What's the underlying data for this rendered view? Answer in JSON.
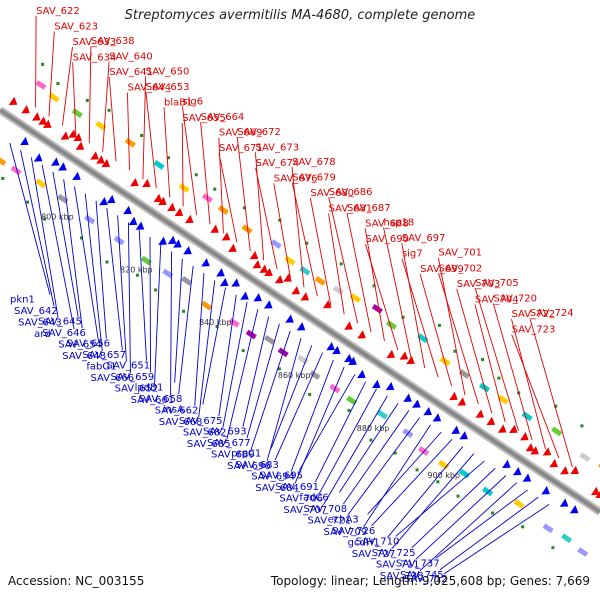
{
  "title": "Streptomyces avermitilis MA-4680, complete genome",
  "footer": {
    "accession": "Accession: NC_003155",
    "stats": "Topology: linear; Length: 9,025,608 bp; Genes: 7,669"
  },
  "ticks": [
    "800 kbp",
    "820 kbp",
    "840 kbp",
    "860 kbp",
    "880 kbp",
    "900 kbp"
  ],
  "labels_top": [
    "SAV_622",
    "SAV_623",
    "SAV_633",
    "SAV_634",
    "SAV_638",
    "SAV_640",
    "SAV_641",
    "SAV_644",
    "SAV_650",
    "SAV_653",
    "blaB1",
    "SAV_655",
    "sig6",
    "SAV_664",
    "SAV_669",
    "SAV_671",
    "SAV_672",
    "SAV_673",
    "SAV_674",
    "SAV_676",
    "SAV_678",
    "SAV_679",
    "SAV_680",
    "SAV_681",
    "SAV_686",
    "SAV_687",
    "SAV_688",
    "SAV_690",
    "hsp18",
    "SAV_697",
    "sig7",
    "SAV_699",
    "SAV_701",
    "SAV_702",
    "SAV_703",
    "SAV_704",
    "SAV_705",
    "SAV_720",
    "SAV_722",
    "SAV_723",
    "SAV_724"
  ],
  "labels_bottom": [
    "pkn1",
    "SAV_642",
    "SAV_643",
    "ard",
    "SAV_645",
    "SAV_646",
    "SAV_654",
    "SAV_648",
    "SAV_656",
    "SAV_657",
    "fabG1",
    "SAV_666",
    "SAV_651",
    "SAV_659",
    "SAV_652",
    "SAV_661",
    "lpdB1",
    "SAV_658",
    "SAV_662",
    "SAV_668",
    "insA",
    "SAV_675",
    "SAV_682",
    "SAV_685",
    "SAV_693",
    "SAV_677",
    "SAV_689",
    "SAV_696",
    "prpC1",
    "SAV_683",
    "SAV_694",
    "SAV_684",
    "SAV_695",
    "SAV_691",
    "SAV_706",
    "SAV_707",
    "fadC6",
    "SAV_708",
    "SAV_721",
    "SAV_709",
    "echA3",
    "SAV_726",
    "gcdH1",
    "SAV_727",
    "SAV_710",
    "SAV_725",
    "SAV_711",
    "SAV_738",
    "SAV_737",
    "SAV_745",
    "SAV_712"
  ],
  "colors": {
    "top_strand": "#ee0000",
    "bottom_strand": "#0000ee",
    "backbone": "#888888",
    "top_line": "#e00000",
    "bottom_line": "#0000cc"
  }
}
